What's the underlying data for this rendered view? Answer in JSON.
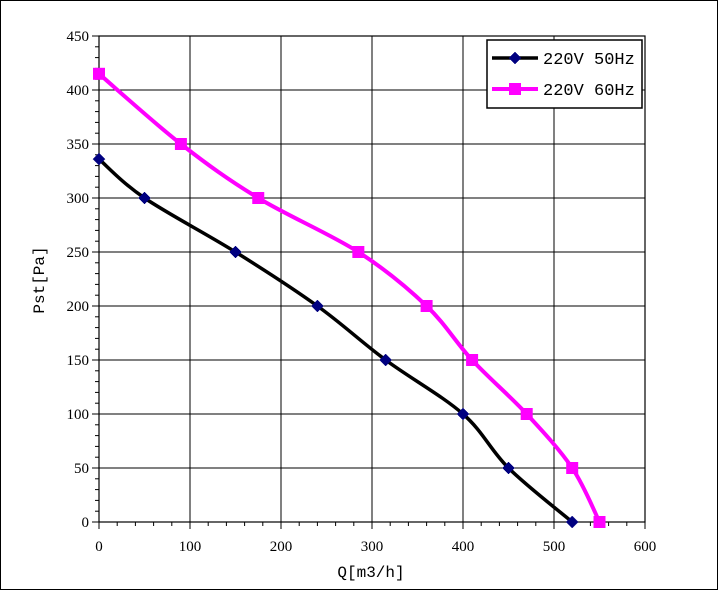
{
  "chart_data": {
    "type": "line",
    "xlabel": "Q[m3/h]",
    "ylabel": "Pst[Pa]",
    "xlim": [
      0,
      600
    ],
    "ylim": [
      0,
      450
    ],
    "x_ticks": [
      0,
      100,
      200,
      300,
      400,
      500,
      600
    ],
    "y_ticks": [
      0,
      50,
      100,
      150,
      200,
      250,
      300,
      350,
      400,
      450
    ],
    "grid": true,
    "legend_position": "top-right",
    "series": [
      {
        "name": "220V 50Hz",
        "color": "#000000",
        "marker_color": "#000080",
        "marker": "diamond",
        "x": [
          0,
          50,
          150,
          240,
          315,
          400,
          450,
          520
        ],
        "y": [
          336,
          300,
          250,
          200,
          150,
          100,
          50,
          0
        ]
      },
      {
        "name": "220V 60Hz",
        "color": "#FF00FF",
        "marker_color": "#FF00FF",
        "marker": "square",
        "x": [
          0,
          90,
          175,
          285,
          360,
          410,
          470,
          520,
          550
        ],
        "y": [
          415,
          350,
          300,
          250,
          200,
          150,
          100,
          50,
          0
        ]
      }
    ]
  }
}
